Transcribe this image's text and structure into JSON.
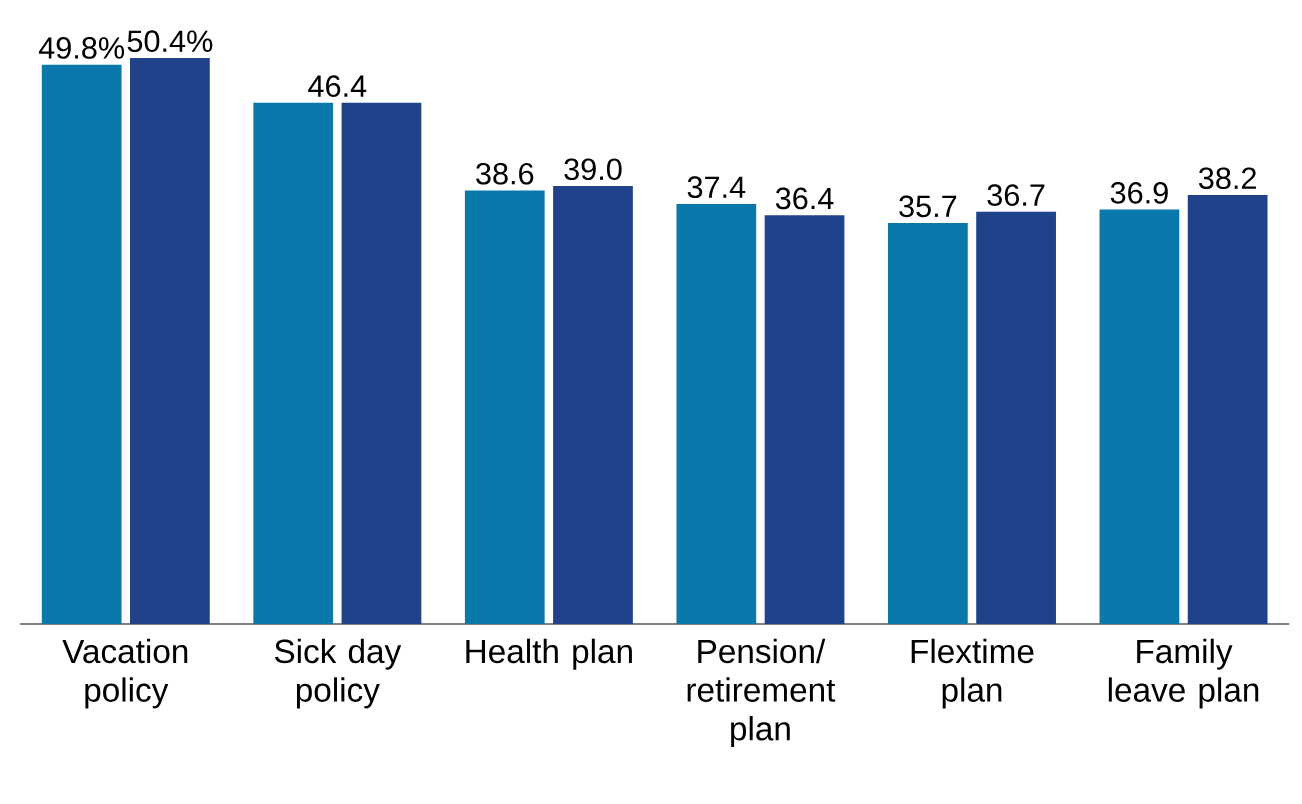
{
  "chart_data": {
    "type": "bar",
    "categories": [
      "Vacation policy",
      "Sick day policy",
      "Health plan",
      "Pension/ retirement plan",
      "Flextime plan",
      "Family leave plan"
    ],
    "tick_labels": "x",
    "series": [
      {
        "color": "#0a78aa",
        "values": [
          49.8,
          46.4,
          38.6,
          37.4,
          35.7,
          36.9
        ],
        "value_labels": [
          "49.8%",
          "46.4",
          "38.6",
          "37.4",
          "35.7",
          "36.9"
        ]
      },
      {
        "color": "#1f428a",
        "values": [
          50.4,
          46.4,
          39.0,
          36.4,
          36.7,
          38.2
        ],
        "value_labels": [
          "50.4%",
          null,
          "39.0",
          "36.4",
          "36.7",
          "38.2"
        ]
      }
    ]
  }
}
